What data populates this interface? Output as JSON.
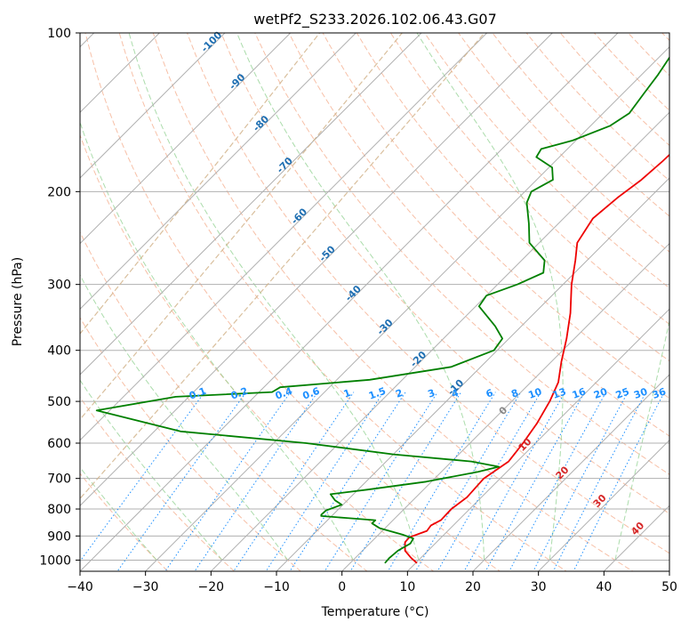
{
  "chart_data": {
    "type": "line",
    "chart_kind": "skew-T log-P sounding",
    "title": "wetPf2_S233.2026.102.06.43.G07",
    "xlabel": "Temperature (°C)",
    "ylabel": "Pressure (hPa)",
    "xlim": [
      -40,
      50
    ],
    "ylim": [
      1050,
      100
    ],
    "y_scale": "log",
    "grid": true,
    "x_ticks": [
      "−40",
      "−30",
      "−20",
      "−10",
      "0",
      "10",
      "20",
      "30",
      "40",
      "50"
    ],
    "y_ticks": [
      "100",
      "200",
      "300",
      "400",
      "500",
      "600",
      "700",
      "800",
      "900",
      "1000"
    ],
    "series": [
      {
        "role": "temperature",
        "color": "#ee0000",
        "points": [
          [
            1013,
            10.2
          ],
          [
            990,
            8.5
          ],
          [
            960,
            6.5
          ],
          [
            925,
            5.2
          ],
          [
            905,
            5.1
          ],
          [
            880,
            6.8
          ],
          [
            860,
            6.6
          ],
          [
            840,
            7.3
          ],
          [
            800,
            7.2
          ],
          [
            760,
            7.8
          ],
          [
            700,
            7.5
          ],
          [
            650,
            8.7
          ],
          [
            600,
            8.1
          ],
          [
            550,
            7.2
          ],
          [
            500,
            5.8
          ],
          [
            460,
            4.2
          ],
          [
            420,
            1.5
          ],
          [
            380,
            -1.2
          ],
          [
            340,
            -4.5
          ],
          [
            300,
            -8.7
          ],
          [
            270,
            -11.8
          ],
          [
            250,
            -14.2
          ],
          [
            225,
            -15.5
          ],
          [
            205,
            -14.9
          ],
          [
            190,
            -14.0
          ],
          [
            175,
            -13.6
          ],
          [
            160,
            -13.4
          ],
          [
            150,
            -13.0
          ],
          [
            140,
            -10.8
          ],
          [
            125,
            -6.8
          ],
          [
            115,
            -5.2
          ],
          [
            108,
            -5.4
          ],
          [
            100,
            -5.5
          ]
        ]
      },
      {
        "role": "dewpoint",
        "color": "#008000",
        "points": [
          [
            1013,
            5.3
          ],
          [
            990,
            5.2
          ],
          [
            960,
            5.4
          ],
          [
            930,
            6.2
          ],
          [
            910,
            5.9
          ],
          [
            895,
            3.7
          ],
          [
            870,
            -0.8
          ],
          [
            852,
            -2.7
          ],
          [
            840,
            -2.7
          ],
          [
            832,
            -7.4
          ],
          [
            825,
            -11.6
          ],
          [
            820,
            -11.8
          ],
          [
            805,
            -11.7
          ],
          [
            785,
            -10.2
          ],
          [
            770,
            -11.9
          ],
          [
            750,
            -13.5
          ],
          [
            735,
            -8.5
          ],
          [
            710,
            -0.8
          ],
          [
            680,
            5.6
          ],
          [
            665,
            8.0
          ],
          [
            650,
            3.0
          ],
          [
            630,
            -10.0
          ],
          [
            600,
            -25.0
          ],
          [
            570,
            -46.0
          ],
          [
            520,
            -62.0
          ],
          [
            490,
            -52.0
          ],
          [
            480,
            -38.0
          ],
          [
            470,
            -37.5
          ],
          [
            455,
            -25.0
          ],
          [
            430,
            -14.5
          ],
          [
            400,
            -10.5
          ],
          [
            380,
            -11.0
          ],
          [
            360,
            -14.0
          ],
          [
            330,
            -19.5
          ],
          [
            315,
            -20.0
          ],
          [
            300,
            -17.0
          ],
          [
            285,
            -14.8
          ],
          [
            270,
            -16.5
          ],
          [
            250,
            -21.5
          ],
          [
            230,
            -24.5
          ],
          [
            210,
            -28.0
          ],
          [
            200,
            -29.0
          ],
          [
            190,
            -27.5
          ],
          [
            180,
            -29.5
          ],
          [
            172,
            -33.5
          ],
          [
            166,
            -34.0
          ],
          [
            160,
            -30.5
          ],
          [
            150,
            -27.0
          ],
          [
            142,
            -26.0
          ],
          [
            130,
            -26.8
          ],
          [
            120,
            -27.5
          ],
          [
            110,
            -28.5
          ],
          [
            104,
            -28.8
          ],
          [
            100,
            -29.5
          ]
        ]
      }
    ],
    "isotherm_labels": [
      "-100",
      "-90",
      "-80",
      "-70",
      "-60",
      "-50",
      "-40",
      "-30",
      "-20",
      "-10"
    ],
    "mixing_ratio_labels": [
      "0.1",
      "0.2",
      "0.4",
      "0.6",
      "1",
      "1.5",
      "2",
      "3",
      "4",
      "6",
      "8",
      "10",
      "13",
      "16",
      "20",
      "25",
      "30",
      "36"
    ],
    "zero_label": "0",
    "pos_isotherm_labels": [
      "10",
      "20",
      "30",
      "40"
    ],
    "colors": {
      "temperature": "#ee0000",
      "dewpoint": "#008000",
      "isotherm_label": "#1f6fb2",
      "mixing_ratio": "#1e90ff",
      "positive_label": "#d62728",
      "zero_label": "#888888",
      "dry_adiabat": "#f4a582",
      "moist_adiabat": "#8fd08f",
      "saturated_ratio": "#d2b48c",
      "grid": "#b0b0b0"
    }
  }
}
